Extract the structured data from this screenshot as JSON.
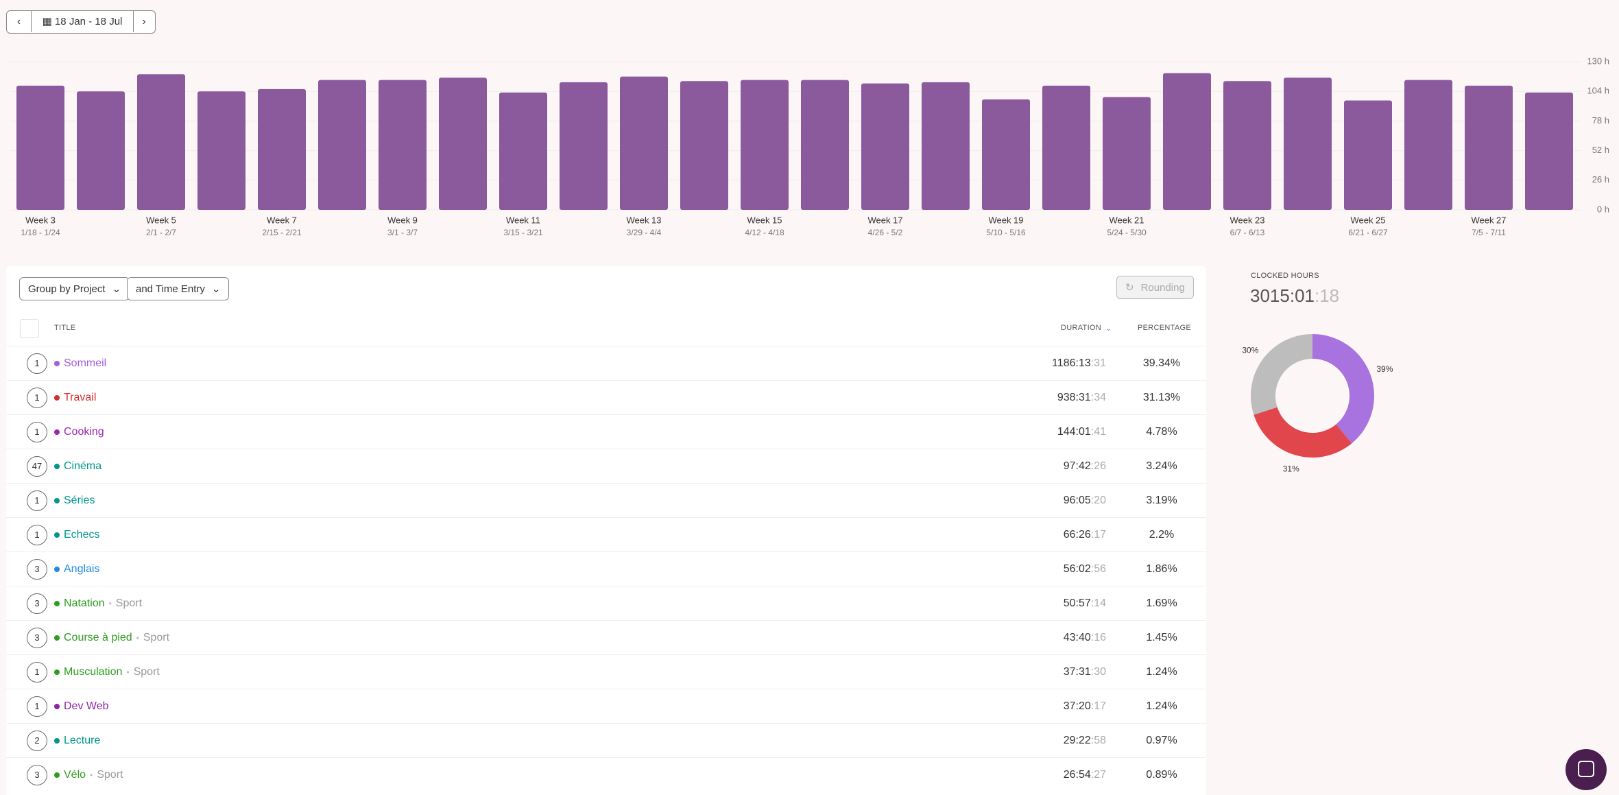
{
  "toolbar": {
    "date_range": "18 Jan - 18 Jul"
  },
  "chart_data": [
    {
      "type": "bar",
      "color": "#8a5a9c",
      "categories": [
        "Week 3",
        null,
        "Week 5",
        null,
        "Week 7",
        null,
        "Week 9",
        null,
        "Week 11",
        null,
        "Week 13",
        null,
        "Week 15",
        null,
        "Week 17",
        null,
        "Week 19",
        null,
        "Week 21",
        null,
        "Week 23",
        null,
        "Week 25",
        null,
        "Week 27",
        null
      ],
      "category_dates": [
        "1/18 - 1/24",
        null,
        "2/1 - 2/7",
        null,
        "2/15 - 2/21",
        null,
        "3/1 - 3/7",
        null,
        "3/15 - 3/21",
        null,
        "3/29 - 4/4",
        null,
        "4/12 - 4/18",
        null,
        "4/26 - 5/2",
        null,
        "5/10 - 5/16",
        null,
        "5/24 - 5/30",
        null,
        "6/7 - 6/13",
        null,
        "6/21 - 6/27",
        null,
        "7/5 - 7/11",
        null
      ],
      "values": [
        109,
        104,
        119,
        104,
        106,
        114,
        114,
        116,
        103,
        112,
        117,
        113,
        114,
        114,
        111,
        112,
        97,
        109,
        99,
        120,
        113,
        116,
        96,
        114,
        109,
        103
      ],
      "ylim": [
        0,
        130
      ],
      "yticks": [
        {
          "value": 0,
          "label": "0 h"
        },
        {
          "value": 26,
          "label": "26 h"
        },
        {
          "value": 52,
          "label": "52 h"
        },
        {
          "value": 78,
          "label": "78 h"
        },
        {
          "value": 104,
          "label": "104 h"
        },
        {
          "value": 130,
          "label": "130 h"
        }
      ],
      "grid": true
    },
    {
      "type": "pie",
      "donut": true,
      "values": [
        39,
        31,
        30
      ],
      "value_labels": [
        "39%",
        "31%",
        "30%"
      ],
      "colors": [
        "#a873de",
        "#e0464b",
        "#bdbdbd"
      ]
    }
  ],
  "table": {
    "controls": [
      "Group by Project",
      "and Time Entry",
      "Rounding"
    ],
    "columns": [
      "TITLE",
      "DURATION",
      "PERCENTAGE"
    ],
    "rows": [
      {
        "count": "1",
        "name": "Sommeil",
        "color": "#a25ddc",
        "duration": "1186:13",
        "seconds": ":31",
        "percentage": "39.34%"
      },
      {
        "count": "1",
        "name": "Travail",
        "color": "#d32f2f",
        "duration": "938:31",
        "seconds": ":34",
        "percentage": "31.13%"
      },
      {
        "count": "1",
        "name": "Cooking",
        "color": "#9c27b0",
        "duration": "144:01",
        "seconds": ":41",
        "percentage": "4.78%"
      },
      {
        "count": "47",
        "name": "Cinéma",
        "color": "#00968a",
        "duration": "97:42",
        "seconds": ":26",
        "percentage": "3.24%"
      },
      {
        "count": "1",
        "name": "Séries",
        "color": "#00968a",
        "duration": "96:05",
        "seconds": ":20",
        "percentage": "3.19%"
      },
      {
        "count": "1",
        "name": "Echecs",
        "color": "#00968a",
        "duration": "66:26",
        "seconds": ":17",
        "percentage": "2.2%"
      },
      {
        "count": "3",
        "name": "Anglais",
        "color": "#1e88e5",
        "duration": "56:02",
        "seconds": ":56",
        "percentage": "1.86%"
      },
      {
        "count": "3",
        "name": "Natation",
        "color": "#2e9d1f",
        "client": "Sport",
        "duration": "50:57",
        "seconds": ":14",
        "percentage": "1.69%"
      },
      {
        "count": "3",
        "name": "Course à pied",
        "color": "#2e9d1f",
        "client": "Sport",
        "duration": "43:40",
        "seconds": ":16",
        "percentage": "1.45%"
      },
      {
        "count": "1",
        "name": "Musculation",
        "color": "#2e9d1f",
        "client": "Sport",
        "duration": "37:31",
        "seconds": ":30",
        "percentage": "1.24%"
      },
      {
        "count": "1",
        "name": "Dev Web",
        "color": "#8e24aa",
        "duration": "37:20",
        "seconds": ":17",
        "percentage": "1.24%"
      },
      {
        "count": "2",
        "name": "Lecture",
        "color": "#00968a",
        "duration": "29:22",
        "seconds": ":58",
        "percentage": "0.97%"
      },
      {
        "count": "3",
        "name": "Vélo",
        "color": "#2e9d1f",
        "client": "Sport",
        "duration": "26:54",
        "seconds": ":27",
        "percentage": "0.89%"
      }
    ]
  },
  "summary": {
    "label": "CLOCKED HOURS",
    "total": "3015:01",
    "seconds": ":18"
  }
}
